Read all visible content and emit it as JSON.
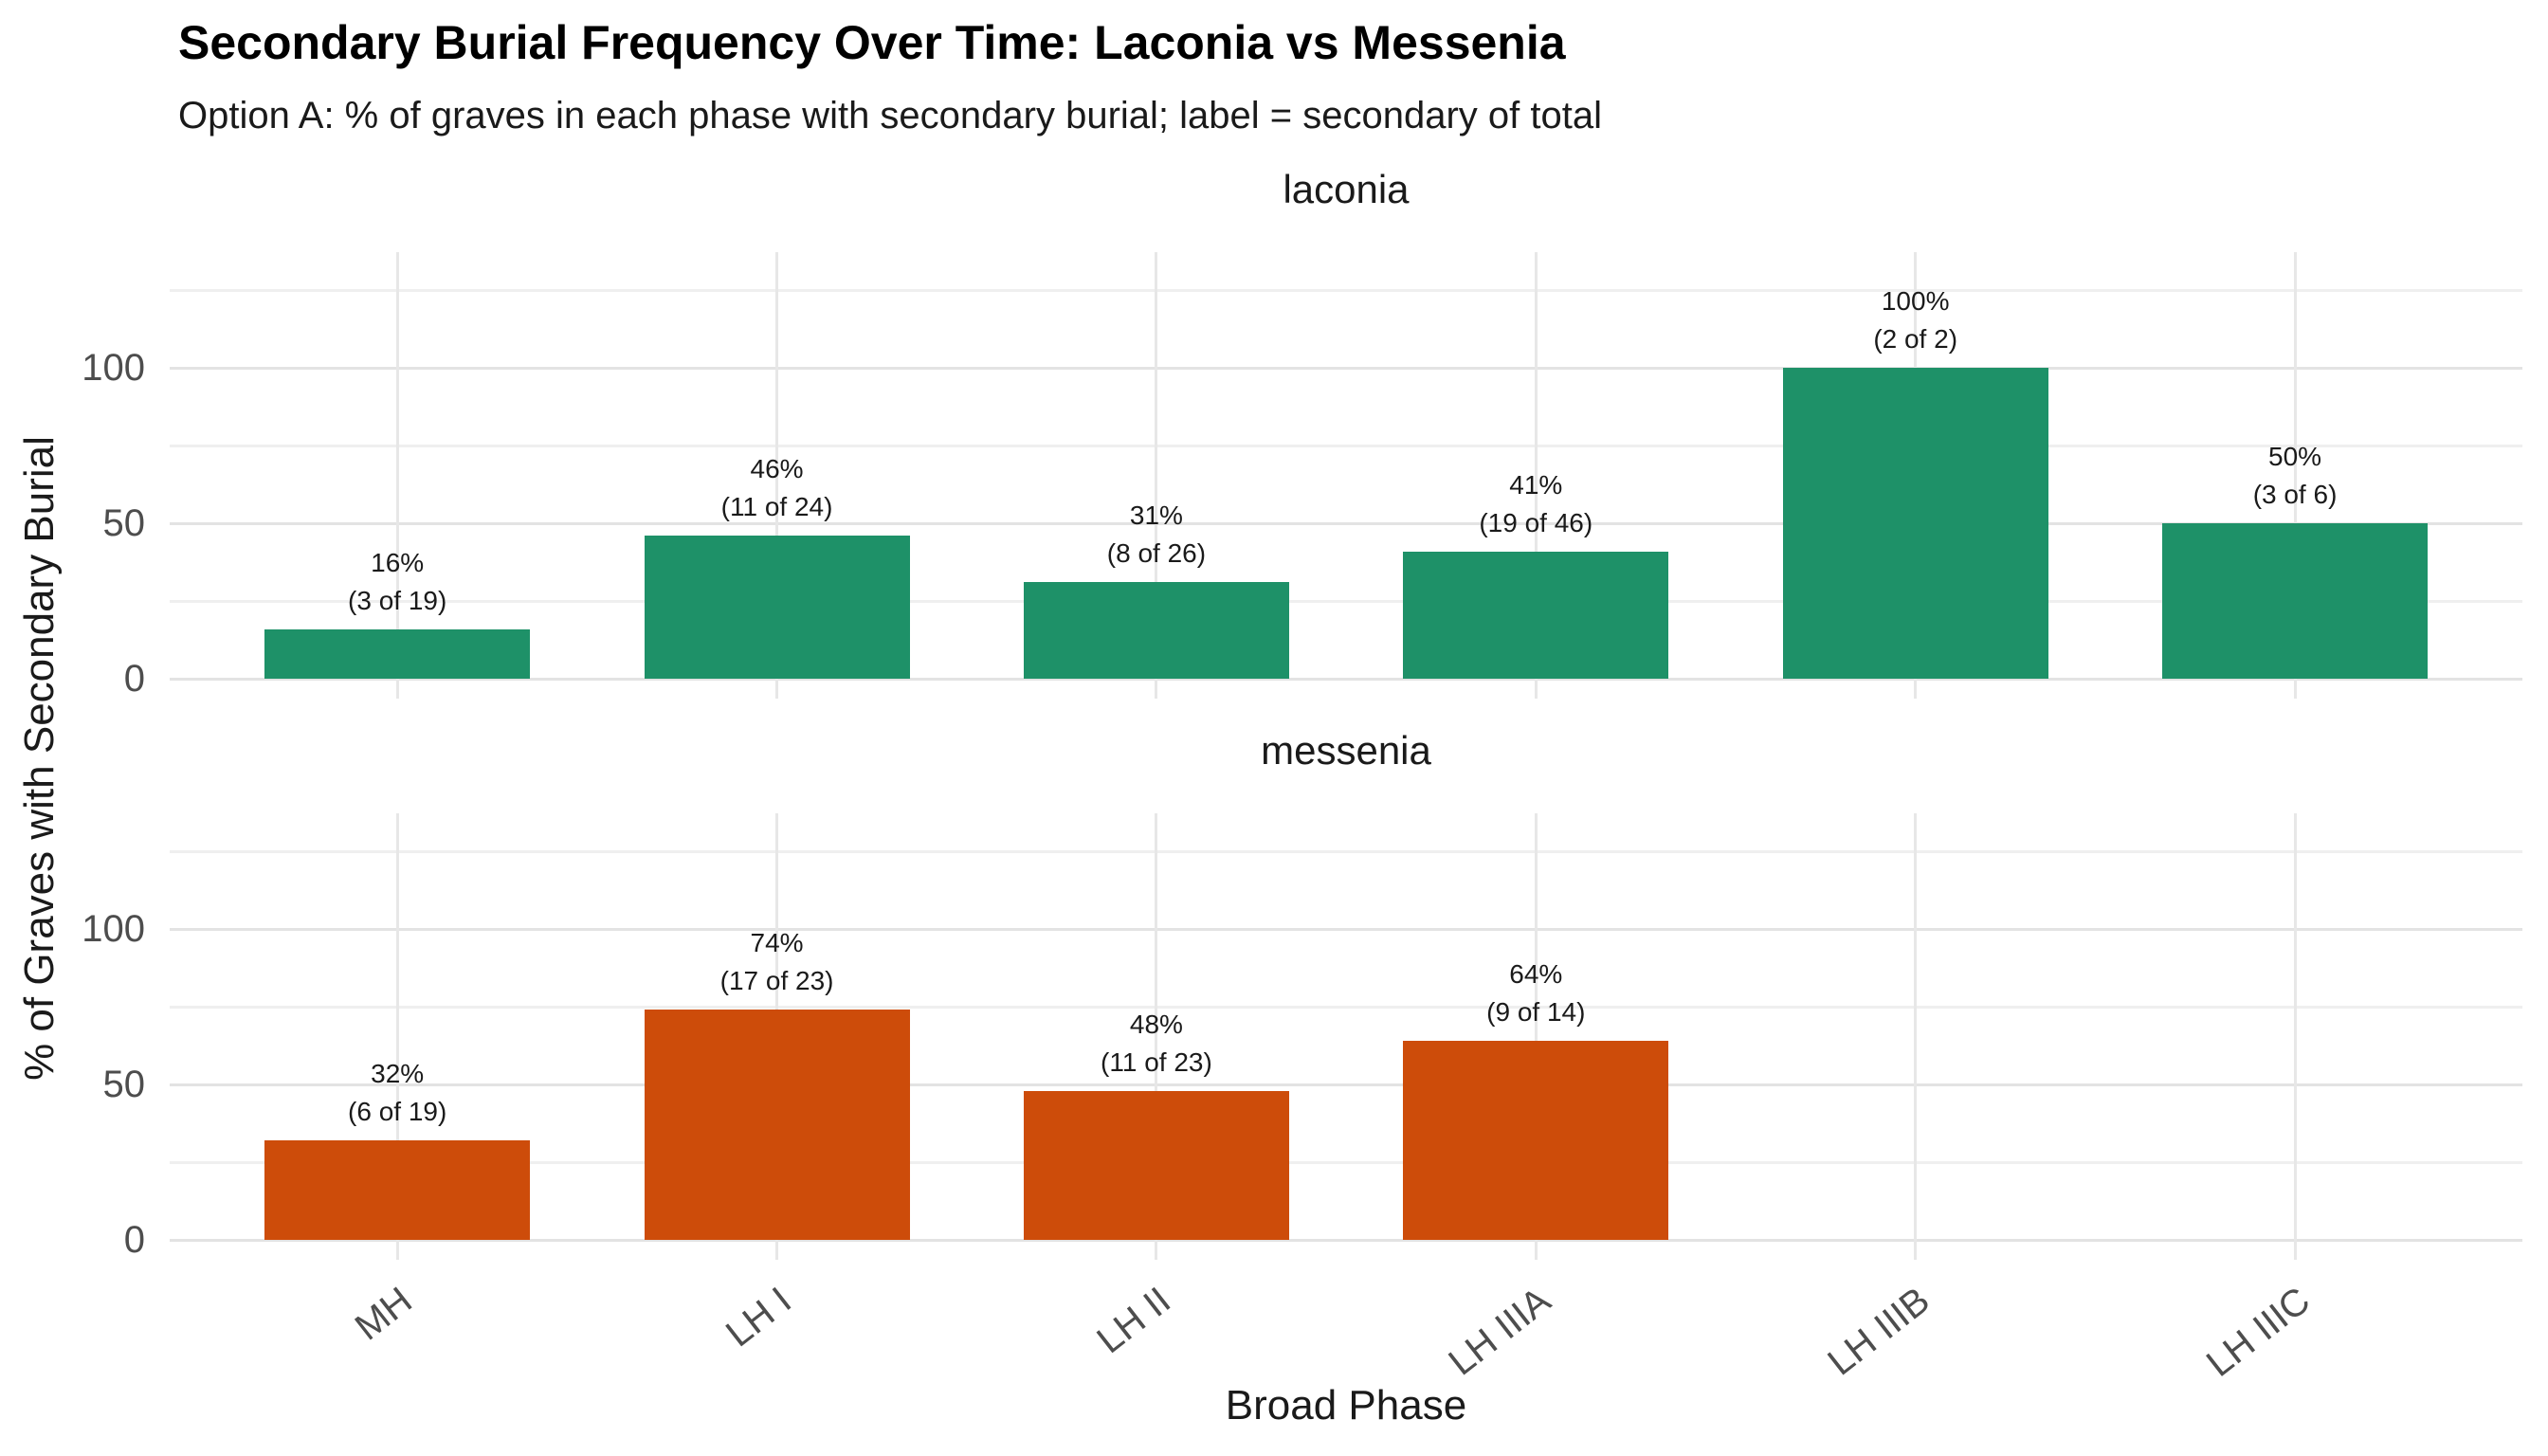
{
  "chart_data": {
    "type": "bar",
    "title": "Secondary Burial Frequency Over Time: Laconia vs Messenia",
    "subtitle": "Option A: % of graves in each phase with secondary burial; label = secondary of total",
    "xlabel": "Broad Phase",
    "ylabel": "% of Graves with Secondary Burial",
    "categories": [
      "MH",
      "LH I",
      "LH II",
      "LH IIIA",
      "LH IIIB",
      "LH IIIC"
    ],
    "y_axis": {
      "tick_values": [
        0,
        50,
        100
      ],
      "tick_labels": [
        "0",
        "50",
        "100"
      ],
      "minor_gridlines": [
        25,
        75,
        125
      ],
      "range": [
        -6.4,
        137
      ],
      "unit": "percent"
    },
    "grid": true,
    "legend_position": "none",
    "facets": [
      {
        "name": "laconia",
        "color": "#1E9168",
        "series": [
          {
            "category": "MH",
            "pct": 16,
            "secondary": 3,
            "total": 19,
            "label_pct": "16%",
            "label_count": "(3 of 19)"
          },
          {
            "category": "LH I",
            "pct": 46,
            "secondary": 11,
            "total": 24,
            "label_pct": "46%",
            "label_count": "(11 of 24)"
          },
          {
            "category": "LH II",
            "pct": 31,
            "secondary": 8,
            "total": 26,
            "label_pct": "31%",
            "label_count": "(8 of 26)"
          },
          {
            "category": "LH IIIA",
            "pct": 41,
            "secondary": 19,
            "total": 46,
            "label_pct": "41%",
            "label_count": "(19 of 46)"
          },
          {
            "category": "LH IIIB",
            "pct": 100,
            "secondary": 2,
            "total": 2,
            "label_pct": "100%",
            "label_count": "(2 of 2)"
          },
          {
            "category": "LH IIIC",
            "pct": 50,
            "secondary": 3,
            "total": 6,
            "label_pct": "50%",
            "label_count": "(3 of 6)"
          }
        ]
      },
      {
        "name": "messenia",
        "color": "#CD4C0A",
        "series": [
          {
            "category": "MH",
            "pct": 32,
            "secondary": 6,
            "total": 19,
            "label_pct": "32%",
            "label_count": "(6 of 19)"
          },
          {
            "category": "LH I",
            "pct": 74,
            "secondary": 17,
            "total": 23,
            "label_pct": "74%",
            "label_count": "(17 of 23)"
          },
          {
            "category": "LH II",
            "pct": 48,
            "secondary": 11,
            "total": 23,
            "label_pct": "48%",
            "label_count": "(11 of 23)"
          },
          {
            "category": "LH IIIA",
            "pct": 64,
            "secondary": 9,
            "total": 14,
            "label_pct": "64%",
            "label_count": "(9 of 14)"
          },
          {
            "category": "LH IIIB",
            "pct": null,
            "secondary": null,
            "total": null,
            "label_pct": "",
            "label_count": ""
          },
          {
            "category": "LH IIIC",
            "pct": null,
            "secondary": null,
            "total": null,
            "label_pct": "",
            "label_count": ""
          }
        ]
      }
    ]
  }
}
